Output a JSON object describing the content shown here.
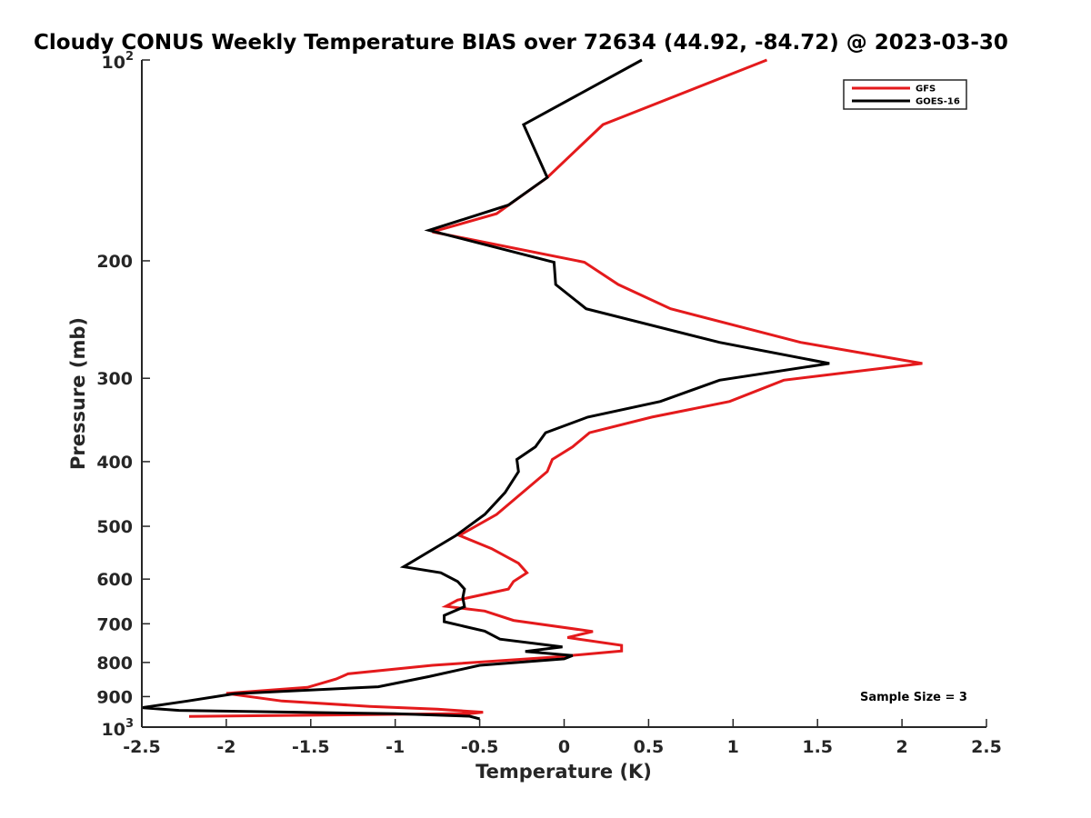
{
  "chart_data": {
    "type": "line",
    "title": "Cloudy CONUS Weekly Temperature BIAS over 72634 (44.92, -84.72) @ 2023-03-30",
    "xlabel": "Temperature (K)",
    "ylabel": "Pressure (mb)",
    "xlim": [
      -2.5,
      2.5
    ],
    "ylim": [
      100,
      1000
    ],
    "yscale": "log",
    "y_reversed": true,
    "grid": false,
    "legend_position": "top-right",
    "x_ticks": [
      "-2.5",
      "-2",
      "-1.5",
      "-1",
      "-0.5",
      "0",
      "0.5",
      "1",
      "1.5",
      "2",
      "2.5"
    ],
    "x_tick_values": [
      -2.5,
      -2,
      -1.5,
      -1,
      -0.5,
      0,
      0.5,
      1,
      1.5,
      2,
      2.5
    ],
    "y_ticks": [
      {
        "value": 100,
        "base": "10",
        "exp": "2"
      },
      {
        "value": 200,
        "text": "200"
      },
      {
        "value": 300,
        "text": "300"
      },
      {
        "value": 400,
        "text": "400"
      },
      {
        "value": 500,
        "text": "500"
      },
      {
        "value": 600,
        "text": "600"
      },
      {
        "value": 700,
        "text": "700"
      },
      {
        "value": 800,
        "text": "800"
      },
      {
        "value": 900,
        "text": "900"
      },
      {
        "value": 1000,
        "base": "10",
        "exp": "3"
      }
    ],
    "annotation": "Sample Size = 3",
    "series": [
      {
        "name": "GFS",
        "color": "#e41a1c",
        "points": [
          [
            1.2,
            100
          ],
          [
            0.23,
            125
          ],
          [
            -0.1,
            150
          ],
          [
            -0.4,
            170
          ],
          [
            -0.78,
            181
          ],
          [
            0.12,
            201
          ],
          [
            0.32,
            217
          ],
          [
            0.63,
            236
          ],
          [
            1.4,
            265
          ],
          [
            2.12,
            285
          ],
          [
            1.3,
            302
          ],
          [
            0.98,
            325
          ],
          [
            0.52,
            343
          ],
          [
            0.15,
            362
          ],
          [
            0.05,
            380
          ],
          [
            -0.07,
            397
          ],
          [
            -0.1,
            414
          ],
          [
            -0.4,
            480
          ],
          [
            -0.62,
            516
          ],
          [
            -0.43,
            540
          ],
          [
            -0.27,
            568
          ],
          [
            -0.22,
            587
          ],
          [
            -0.3,
            605
          ],
          [
            -0.33,
            621
          ],
          [
            -0.63,
            645
          ],
          [
            -0.7,
            659
          ],
          [
            -0.47,
            670
          ],
          [
            -0.3,
            692
          ],
          [
            0.17,
            719
          ],
          [
            0.02,
            734
          ],
          [
            0.34,
            754
          ],
          [
            0.34,
            769
          ],
          [
            -0.08,
            786
          ],
          [
            -0.78,
            808
          ],
          [
            -1.28,
            832
          ],
          [
            -1.35,
            847
          ],
          [
            -1.52,
            872
          ],
          [
            -2.0,
            890
          ],
          [
            -1.67,
            914
          ],
          [
            -1.15,
            931
          ],
          [
            -0.75,
            940
          ],
          [
            -0.48,
            950
          ],
          [
            -0.55,
            954
          ],
          [
            -2.22,
            964
          ]
        ]
      },
      {
        "name": "GOES-16",
        "color": "#000000",
        "points": [
          [
            0.46,
            100
          ],
          [
            -0.24,
            125
          ],
          [
            -0.1,
            150
          ],
          [
            -0.33,
            165
          ],
          [
            -0.8,
            180
          ],
          [
            -0.06,
            201
          ],
          [
            -0.05,
            217
          ],
          [
            0.13,
            236
          ],
          [
            0.92,
            265
          ],
          [
            1.57,
            285
          ],
          [
            0.92,
            302
          ],
          [
            0.57,
            325
          ],
          [
            0.14,
            343
          ],
          [
            -0.11,
            362
          ],
          [
            -0.17,
            380
          ],
          [
            -0.28,
            397
          ],
          [
            -0.27,
            414
          ],
          [
            -0.35,
            445
          ],
          [
            -0.47,
            480
          ],
          [
            -0.64,
            516
          ],
          [
            -0.77,
            540
          ],
          [
            -0.95,
            575
          ],
          [
            -0.73,
            587
          ],
          [
            -0.63,
            605
          ],
          [
            -0.59,
            621
          ],
          [
            -0.6,
            640
          ],
          [
            -0.59,
            660
          ],
          [
            -0.71,
            680
          ],
          [
            -0.71,
            695
          ],
          [
            -0.47,
            718
          ],
          [
            -0.38,
            738
          ],
          [
            -0.01,
            758
          ],
          [
            -0.23,
            770
          ],
          [
            0.05,
            781
          ],
          [
            0.0,
            790
          ],
          [
            -0.5,
            808
          ],
          [
            -0.8,
            840
          ],
          [
            -1.1,
            870
          ],
          [
            -1.95,
            891
          ],
          [
            -2.23,
            914
          ],
          [
            -2.5,
            935
          ],
          [
            -2.28,
            944
          ],
          [
            -1.0,
            955
          ],
          [
            -0.56,
            963
          ],
          [
            -0.5,
            972
          ]
        ]
      }
    ]
  }
}
